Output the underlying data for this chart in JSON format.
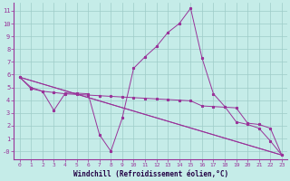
{
  "xlabel": "Windchill (Refroidissement éolien,°C)",
  "background_color": "#c5ece8",
  "grid_color": "#9eccc8",
  "line_color": "#993399",
  "xlim": [
    -0.5,
    23.5
  ],
  "ylim": [
    -0.65,
    11.65
  ],
  "xticks": [
    0,
    1,
    2,
    3,
    4,
    5,
    6,
    7,
    8,
    9,
    10,
    11,
    12,
    13,
    14,
    15,
    16,
    17,
    18,
    19,
    20,
    21,
    22,
    23
  ],
  "ytick_labels": [
    "11",
    "10",
    "9",
    "8",
    "7",
    "6",
    "5",
    "4",
    "3",
    "2",
    "1",
    "-0"
  ],
  "ytick_vals": [
    11,
    10,
    9,
    8,
    7,
    6,
    5,
    4,
    3,
    2,
    1,
    0
  ],
  "curve1_x": [
    0,
    1,
    2,
    3,
    4,
    5,
    6,
    7,
    8,
    9,
    10,
    11,
    12,
    13,
    14,
    15,
    16,
    17,
    18,
    19,
    20,
    21,
    22,
    23
  ],
  "curve1_y": [
    5.8,
    5.0,
    4.7,
    3.2,
    4.55,
    4.55,
    4.5,
    1.3,
    0.0,
    2.6,
    6.5,
    7.4,
    8.2,
    9.3,
    10.0,
    11.2,
    7.3,
    4.5,
    3.5,
    2.3,
    2.1,
    1.8,
    0.8,
    -0.3
  ],
  "curve2_x": [
    0,
    1,
    2,
    3,
    4,
    5,
    6,
    7,
    8,
    9,
    10,
    11,
    12,
    13,
    14,
    15,
    16,
    17,
    18,
    19,
    20,
    21,
    22,
    23
  ],
  "curve2_y": [
    5.8,
    4.9,
    4.7,
    4.6,
    4.5,
    4.45,
    4.4,
    4.35,
    4.3,
    4.25,
    4.2,
    4.15,
    4.1,
    4.05,
    4.0,
    3.95,
    3.55,
    3.5,
    3.45,
    3.4,
    2.2,
    2.1,
    1.8,
    -0.3
  ],
  "curve3_x": [
    0,
    23
  ],
  "curve3_y": [
    5.8,
    -0.3
  ],
  "curve4_x": [
    0,
    23
  ],
  "curve4_y": [
    5.8,
    -0.3
  ]
}
